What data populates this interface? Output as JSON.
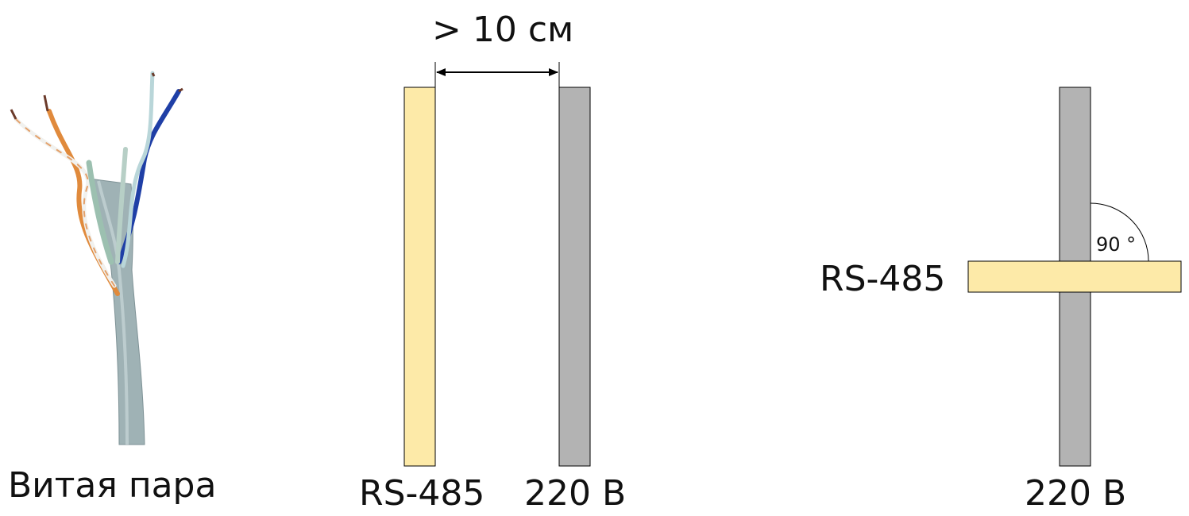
{
  "cable_photo": {
    "label": "Витая пара",
    "jacket_color": "#9fb2b5",
    "wire_colors": [
      "#e08a3c",
      "#f1f1ee",
      "#1f3fa6",
      "#b9d6d9",
      "#9cc0b0"
    ]
  },
  "parallel": {
    "distance_label": "> 10 см",
    "rs485_label": "RS-485",
    "power_label": "220 В"
  },
  "crossing": {
    "rs485_label": "RS-485",
    "power_label": "220 В",
    "angle_label": "90 °"
  },
  "colors": {
    "rs485_fill": "#fdeaa8",
    "power_fill": "#b3b3b3",
    "outline": "#000000"
  }
}
